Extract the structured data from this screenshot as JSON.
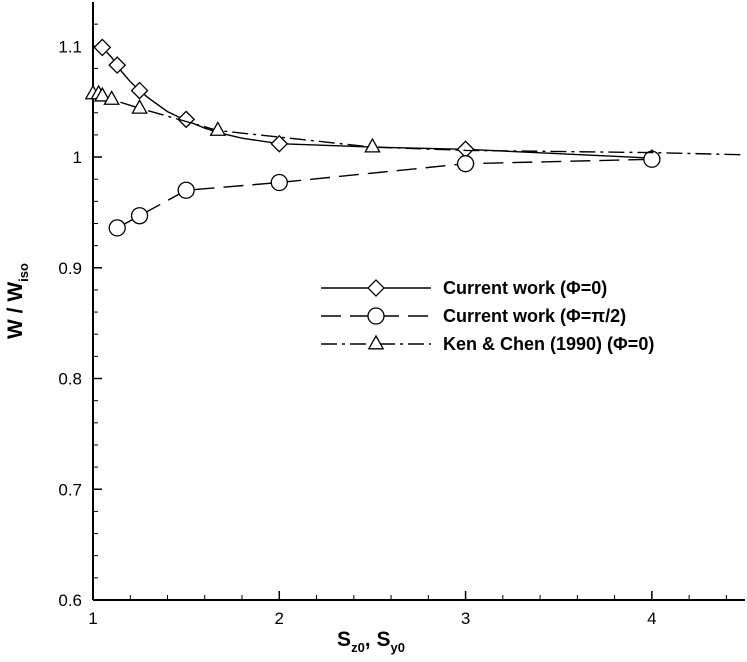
{
  "chart_data": {
    "type": "line",
    "xlabel": {
      "main1": "S",
      "sub1": "z0",
      "sep": ", ",
      "main2": "S",
      "sub2": "y0"
    },
    "ylabel": {
      "main": "W / W",
      "sub": "iso"
    },
    "xlim": [
      1,
      4.5
    ],
    "ylim": [
      0.6,
      1.14
    ],
    "xticks": [
      1,
      2,
      3,
      4
    ],
    "xtick_labels": [
      "1",
      "2",
      "3",
      "4"
    ],
    "yticks": [
      0.6,
      0.7,
      0.8,
      0.9,
      1.0,
      1.1
    ],
    "ytick_labels": [
      "0.6",
      "0.7",
      "0.8",
      "0.9",
      "1",
      "1.1"
    ],
    "grid": false,
    "legend_position": "right-center",
    "series": [
      {
        "name": "Current work (Φ=0)",
        "line_style": "solid",
        "marker": "diamond",
        "x": [
          1.05,
          1.13,
          1.25,
          1.5,
          2.0,
          3.0,
          4.0
        ],
        "y": [
          1.099,
          1.083,
          1.06,
          1.034,
          1.012,
          1.007,
          0.999
        ],
        "curve_x": [
          1.05,
          1.1,
          1.15,
          1.2,
          1.25,
          1.3,
          1.4,
          1.5,
          1.6,
          1.7,
          1.8,
          2.0,
          2.5,
          3.0,
          3.5,
          4.0
        ],
        "curve_y": [
          1.099,
          1.09,
          1.078,
          1.068,
          1.06,
          1.053,
          1.041,
          1.033,
          1.026,
          1.021,
          1.017,
          1.012,
          1.009,
          1.007,
          1.003,
          0.999
        ]
      },
      {
        "name": "Current work (Φ=π/2)",
        "line_style": "dashed",
        "marker": "circle",
        "x": [
          1.13,
          1.25,
          1.5,
          2.0,
          3.0,
          4.0
        ],
        "y": [
          0.936,
          0.947,
          0.97,
          0.977,
          0.994,
          0.998
        ],
        "curve_x": [
          1.13,
          1.25,
          1.5,
          2.0,
          3.0,
          4.0
        ],
        "curve_y": [
          0.936,
          0.947,
          0.97,
          0.977,
          0.994,
          0.998
        ]
      },
      {
        "name": "Ken & Chen (1990) (Φ=0)",
        "line_style": "dashdot",
        "marker": "triangle",
        "x": [
          1.0,
          1.03,
          1.05,
          1.1,
          1.25,
          1.67,
          2.5
        ],
        "y": [
          1.057,
          1.057,
          1.055,
          1.052,
          1.044,
          1.024,
          1.009
        ],
        "curve_x": [
          1.0,
          1.03,
          1.05,
          1.1,
          1.25,
          1.67,
          2.5,
          3.0,
          4.0,
          4.5
        ],
        "curve_y": [
          1.057,
          1.057,
          1.055,
          1.052,
          1.044,
          1.024,
          1.009,
          1.006,
          1.004,
          1.002
        ]
      }
    ]
  }
}
